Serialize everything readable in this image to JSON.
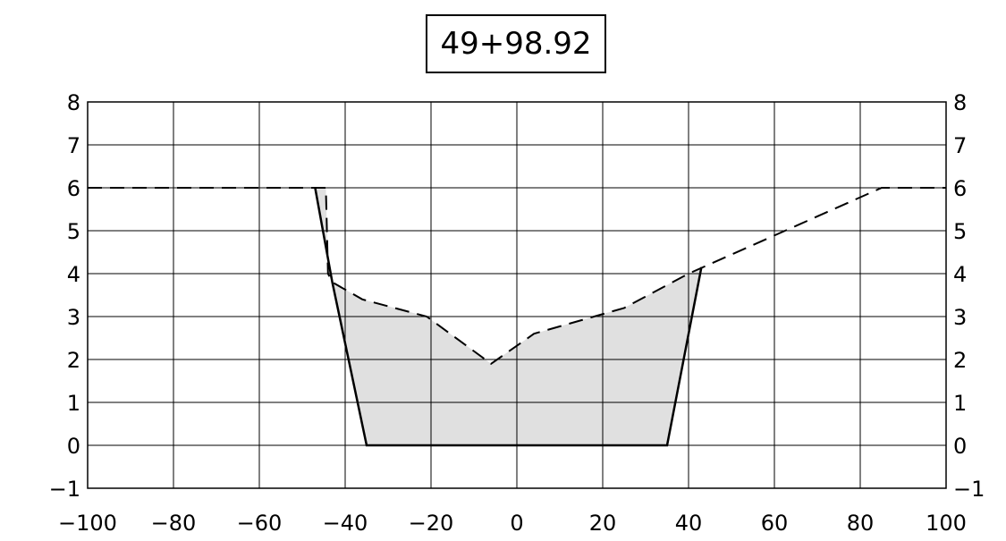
{
  "station_label": "49+98.92",
  "chart_data": {
    "type": "line",
    "title": "49+98.92",
    "xlim": [
      -100,
      100
    ],
    "ylim": [
      -1,
      8
    ],
    "x_ticks": [
      -100,
      -80,
      -60,
      -40,
      -20,
      0,
      20,
      40,
      60,
      80,
      100
    ],
    "y_ticks": [
      -1,
      0,
      1,
      2,
      3,
      4,
      5,
      6,
      7,
      8
    ],
    "x_tick_labels": [
      "−100",
      "−80",
      "−60",
      "−40",
      "−20",
      "0",
      "20",
      "40",
      "60",
      "80",
      "100"
    ],
    "y_tick_labels": [
      "−1",
      "0",
      "1",
      "2",
      "3",
      "4",
      "5",
      "6",
      "7",
      "8"
    ],
    "grid": true,
    "series": [
      {
        "style": "dashed",
        "points": [
          [
            -100,
            6
          ],
          [
            -47,
            6
          ],
          [
            -44.5,
            6
          ],
          [
            -44,
            4
          ],
          [
            -43,
            3.8
          ],
          [
            -36,
            3.4
          ],
          [
            -21,
            3.0
          ],
          [
            -6,
            1.9
          ],
          [
            4,
            2.6
          ],
          [
            25,
            3.2
          ],
          [
            40,
            4.0
          ],
          [
            85,
            6
          ],
          [
            100,
            6
          ]
        ]
      },
      {
        "style": "solid",
        "points": [
          [
            -47,
            6
          ],
          [
            -43,
            3.8
          ],
          [
            -35,
            0
          ],
          [
            35,
            0
          ],
          [
            43,
            4.15
          ]
        ]
      }
    ],
    "fill": {
      "color": "#e0e0e0",
      "polygon": [
        [
          -47,
          6
        ],
        [
          -44.5,
          6
        ],
        [
          -44,
          4
        ],
        [
          -43,
          3.8
        ],
        [
          -36,
          3.4
        ],
        [
          -21,
          3.0
        ],
        [
          -6,
          1.9
        ],
        [
          4,
          2.6
        ],
        [
          25,
          3.2
        ],
        [
          40,
          4.0
        ],
        [
          43,
          4.15
        ],
        [
          35,
          0
        ],
        [
          -35,
          0
        ],
        [
          -43,
          3.8
        ]
      ]
    }
  }
}
